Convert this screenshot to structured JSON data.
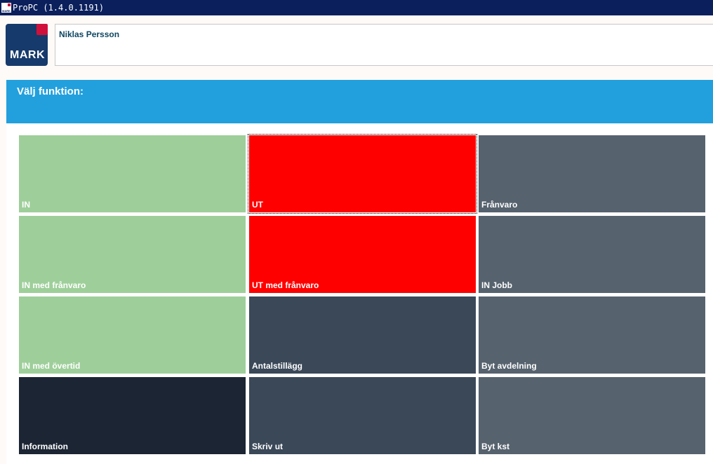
{
  "window": {
    "title": "ProPC (1.4.0.1191)",
    "icon_text": "MARK"
  },
  "header": {
    "logo_text": "MARK",
    "user_name": "Niklas Persson"
  },
  "main": {
    "title": "Välj funktion:",
    "tiles": [
      {
        "label": "IN",
        "color": "#9ecf9a"
      },
      {
        "label": "UT",
        "color": "#ff0000"
      },
      {
        "label": "Frånvaro",
        "color": "#56626e"
      },
      {
        "label": "IN med frånvaro",
        "color": "#9ecf9a"
      },
      {
        "label": "UT med frånvaro",
        "color": "#ff0000"
      },
      {
        "label": "IN Jobb",
        "color": "#56626e"
      },
      {
        "label": "IN med övertid",
        "color": "#9ecf9a"
      },
      {
        "label": "Antalstillägg",
        "color": "#3a4858"
      },
      {
        "label": "Byt avdelning",
        "color": "#56626e"
      },
      {
        "label": "Information",
        "color": "#1b2533"
      },
      {
        "label": "Skriv ut",
        "color": "#3a4858"
      },
      {
        "label": "Byt kst",
        "color": "#56626e"
      }
    ]
  },
  "colors": {
    "titlebar": "#0a1f5c",
    "accent_blue": "#22a0dd",
    "brand_red": "#d0103a",
    "brand_navy": "#163a6b"
  }
}
